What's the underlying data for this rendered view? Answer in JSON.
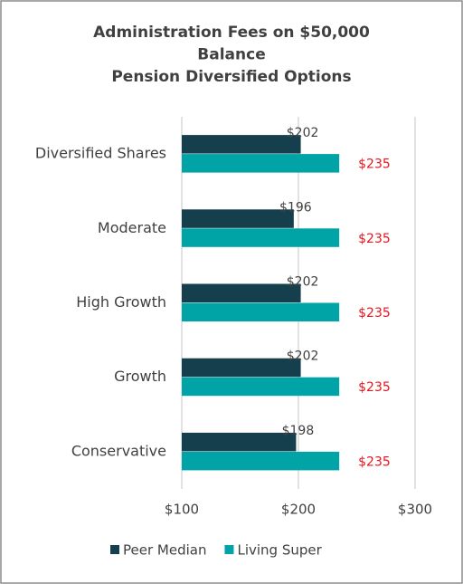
{
  "chart_data": {
    "type": "hbar",
    "title": [
      "Administration Fees on $50,000",
      "Balance",
      "Pension Diversified Options"
    ],
    "categories": [
      "Diversified Shares",
      "Moderate",
      "High Growth",
      "Growth",
      "Conservative"
    ],
    "series": [
      {
        "name": "Peer Median",
        "color": "#153f4d",
        "label_color": "#404040",
        "values": [
          202,
          196,
          202,
          202,
          198
        ],
        "value_labels": [
          "$202",
          "$196",
          "$202",
          "$202",
          "$198"
        ]
      },
      {
        "name": "Living Super",
        "color": "#00a3a6",
        "label_color": "#e8151b",
        "values": [
          235,
          235,
          235,
          235,
          235
        ],
        "value_labels": [
          "$235",
          "$235",
          "$235",
          "$235",
          "$235"
        ]
      }
    ],
    "xlim": [
      100,
      300
    ],
    "xticks": [
      {
        "value": 100,
        "label": "$100"
      },
      {
        "value": 200,
        "label": "$200"
      },
      {
        "value": 300,
        "label": "$300"
      }
    ],
    "grid": true,
    "legend": "bottom"
  }
}
